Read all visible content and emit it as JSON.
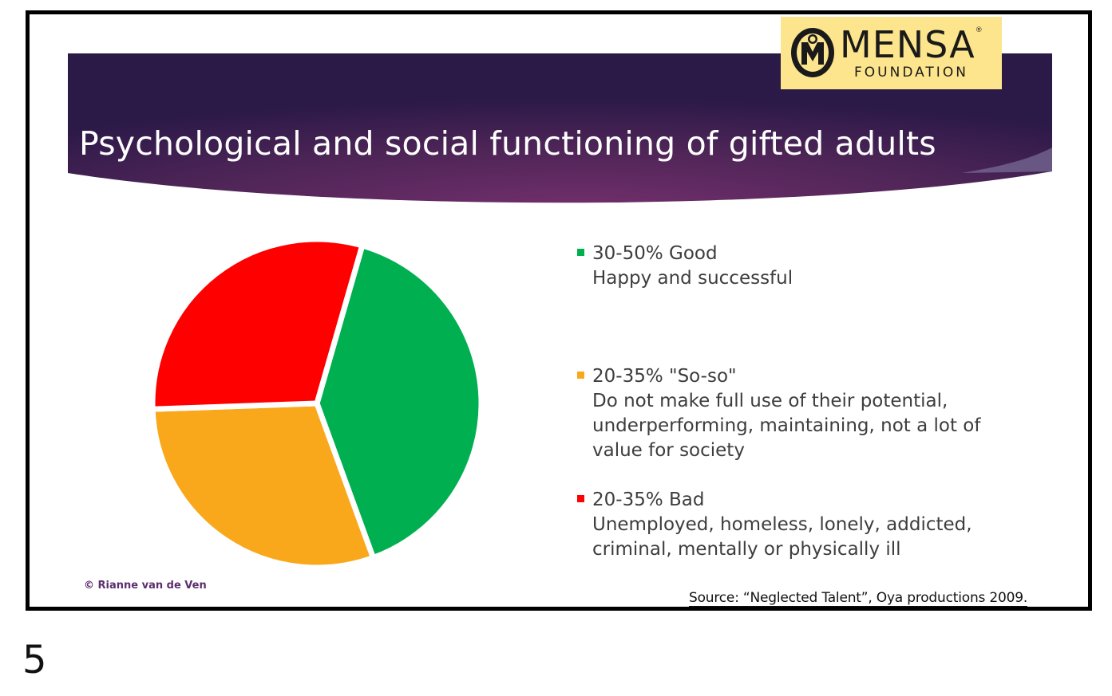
{
  "slide": {
    "title": "Psychological and social functioning of gifted adults",
    "logo": {
      "word": "MENSA",
      "registered": "®",
      "subtitle": "FOUNDATION"
    },
    "copyright": "© Rianne van de Ven",
    "source": "Source: “Neglected Talent”, Oya productions 2009.",
    "page_number": "5"
  },
  "colors": {
    "good": "#00b050",
    "soso": "#f9a81c",
    "bad": "#ff0000",
    "banner_dark": "#2b1948",
    "banner_mid": "#6b2d66"
  },
  "chart_data": {
    "type": "pie",
    "slices": [
      {
        "name": "Good",
        "value": 40,
        "color": "#00b050"
      },
      {
        "name": "So-so",
        "value": 30,
        "color": "#f9a81c"
      },
      {
        "name": "Bad",
        "value": 30,
        "color": "#ff0000"
      }
    ],
    "legend": [
      {
        "head": "30-50%  Good",
        "desc": [
          "Happy and successful"
        ],
        "color": "#00b050"
      },
      {
        "head": "20-35% \"So-so\"",
        "desc": [
          "Do not make full use of their potential,",
          "underperforming, maintaining, not a lot of",
          "value for society"
        ],
        "color": "#f9a81c"
      },
      {
        "head": "20-35%  Bad",
        "desc": [
          "Unemployed, homeless, lonely, addicted,",
          "criminal, mentally or physically ill"
        ],
        "color": "#ff0000"
      }
    ],
    "legend_placement": "right"
  }
}
